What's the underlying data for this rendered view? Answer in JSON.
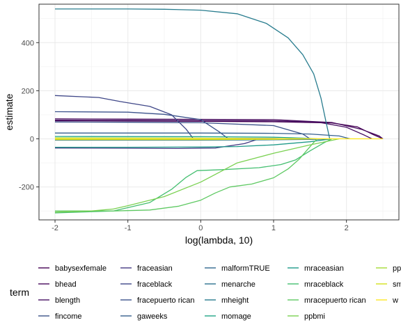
{
  "chart_data": {
    "type": "line",
    "xlabel": "log(lambda, 10)",
    "ylabel": "estimate",
    "xlim": [
      -2.22,
      2.72
    ],
    "ylim": [
      -337,
      560
    ],
    "x_ticks": [
      -2,
      -1,
      0,
      1,
      2
    ],
    "x_tick_labels": [
      "-2",
      "-1",
      "0",
      "1",
      "2"
    ],
    "y_ticks": [
      -200,
      0,
      200,
      400
    ],
    "y_tick_labels": [
      "-200",
      "0",
      "200",
      "400"
    ],
    "grid": true,
    "legend": {
      "title": "term",
      "placement": "bottom",
      "columns": [
        [
          "babysexfemale",
          "bhead",
          "blength",
          "fincome"
        ],
        [
          "fraceasian",
          "fraceblack",
          "fracepuerto rican",
          "gaweeks"
        ],
        [
          "malformTRUE",
          "menarche",
          "mheight",
          "momage"
        ],
        [
          "mraceasian",
          "mraceblack",
          "mracepuerto rican",
          "ppbmi"
        ],
        [
          "pp",
          "sm",
          "w"
        ]
      ]
    },
    "series": [
      {
        "name": "babysexfemale",
        "color": "#440154",
        "points": [
          [
            -2,
            75
          ],
          [
            -1,
            74
          ],
          [
            0,
            73
          ],
          [
            1,
            71
          ],
          [
            1.8,
            66
          ],
          [
            2.15,
            50
          ],
          [
            2.35,
            20
          ],
          [
            2.5,
            0
          ]
        ]
      },
      {
        "name": "bhead",
        "color": "#46085c",
        "points": [
          [
            -2,
            83
          ],
          [
            -1,
            82
          ],
          [
            0,
            81
          ],
          [
            1,
            80
          ],
          [
            1.8,
            68
          ],
          [
            2.2,
            40
          ],
          [
            2.45,
            12
          ],
          [
            2.5,
            0
          ]
        ]
      },
      {
        "name": "blength",
        "color": "#471063",
        "points": [
          [
            -2,
            78
          ],
          [
            -1,
            77
          ],
          [
            0,
            76
          ],
          [
            1,
            75
          ],
          [
            1.6,
            70
          ],
          [
            2.0,
            48
          ],
          [
            2.25,
            15
          ],
          [
            2.35,
            0
          ]
        ]
      },
      {
        "name": "fincome",
        "color": "#3b5289",
        "points": [
          [
            -2,
            70
          ],
          [
            -1,
            69
          ],
          [
            0,
            67
          ],
          [
            1,
            55
          ],
          [
            1.4,
            20
          ],
          [
            1.5,
            0
          ]
        ]
      },
      {
        "name": "fraceasian",
        "color": "#443983",
        "points": [
          [
            -2,
            -38
          ],
          [
            -1,
            -39
          ],
          [
            -0.3,
            -40
          ],
          [
            0.2,
            -38
          ],
          [
            0.6,
            -20
          ],
          [
            0.75,
            -5
          ],
          [
            0.8,
            0
          ]
        ]
      },
      {
        "name": "fraceblack",
        "color": "#3f4788",
        "points": [
          [
            -2,
            180
          ],
          [
            -1.4,
            172
          ],
          [
            -1.1,
            155
          ],
          [
            -0.7,
            135
          ],
          [
            -0.4,
            100
          ],
          [
            -0.2,
            40
          ],
          [
            -0.1,
            0
          ]
        ]
      },
      {
        "name": "fracepuerto rican",
        "color": "#3b528b",
        "points": [
          [
            -2,
            113
          ],
          [
            -1,
            111
          ],
          [
            -0.5,
            102
          ],
          [
            0,
            80
          ],
          [
            0.25,
            30
          ],
          [
            0.38,
            0
          ]
        ]
      },
      {
        "name": "gaweeks",
        "color": "#355f8d",
        "points": [
          [
            -2,
            24
          ],
          [
            -1,
            24
          ],
          [
            0,
            24
          ],
          [
            1,
            23
          ],
          [
            1.5,
            20
          ],
          [
            1.9,
            12
          ],
          [
            2.05,
            0
          ]
        ]
      },
      {
        "name": "malformTRUE",
        "color": "#31688e",
        "points": [
          [
            -2,
            3
          ],
          [
            0,
            3
          ],
          [
            1,
            2
          ],
          [
            1.3,
            0
          ]
        ]
      },
      {
        "name": "menarche",
        "color": "#2c728e",
        "points": [
          [
            -2,
            -5
          ],
          [
            0,
            -5
          ],
          [
            1,
            -4
          ],
          [
            1.6,
            -2
          ],
          [
            1.8,
            0
          ]
        ]
      },
      {
        "name": "mheight",
        "color": "#287c8e",
        "points": [
          [
            -2,
            540
          ],
          [
            -1,
            540
          ],
          [
            -0.5,
            539
          ],
          [
            0,
            535
          ],
          [
            0.5,
            520
          ],
          [
            0.9,
            480
          ],
          [
            1.2,
            420
          ],
          [
            1.4,
            350
          ],
          [
            1.55,
            270
          ],
          [
            1.65,
            170
          ],
          [
            1.72,
            70
          ],
          [
            1.77,
            0
          ]
        ]
      },
      {
        "name": "momage",
        "color": "#21a585",
        "points": [
          [
            -2,
            10
          ],
          [
            0,
            9
          ],
          [
            1,
            7
          ],
          [
            1.4,
            3
          ],
          [
            1.6,
            0
          ]
        ]
      },
      {
        "name": "mraceasian",
        "color": "#1f9a8a",
        "points": [
          [
            -2,
            -35
          ],
          [
            -1,
            -35
          ],
          [
            0,
            -34
          ],
          [
            0.5,
            -32
          ],
          [
            1,
            -25
          ],
          [
            1.5,
            -12
          ],
          [
            1.8,
            0
          ]
        ]
      },
      {
        "name": "mraceblack",
        "color": "#44bf70",
        "points": [
          [
            -2,
            -308
          ],
          [
            -1.2,
            -300
          ],
          [
            -0.7,
            -265
          ],
          [
            -0.4,
            -210
          ],
          [
            -0.2,
            -160
          ],
          [
            -0.05,
            -132
          ],
          [
            0.3,
            -128
          ],
          [
            0.8,
            -120
          ],
          [
            1.1,
            -107
          ],
          [
            1.3,
            -88
          ],
          [
            1.5,
            -50
          ],
          [
            1.7,
            -15
          ],
          [
            1.8,
            0
          ]
        ]
      },
      {
        "name": "mracepuerto rican",
        "color": "#5ec962",
        "points": [
          [
            -2,
            -300
          ],
          [
            -1.2,
            -300
          ],
          [
            -0.7,
            -296
          ],
          [
            -0.3,
            -280
          ],
          [
            0,
            -255
          ],
          [
            0.2,
            -225
          ],
          [
            0.4,
            -200
          ],
          [
            0.7,
            -188
          ],
          [
            1.0,
            -162
          ],
          [
            1.2,
            -125
          ],
          [
            1.35,
            -85
          ],
          [
            1.45,
            -50
          ],
          [
            1.55,
            -15
          ],
          [
            1.6,
            0
          ]
        ]
      },
      {
        "name": "ppbmi",
        "color": "#7ad151",
        "points": [
          [
            -2,
            -305
          ],
          [
            -1.5,
            -300
          ],
          [
            -1.2,
            -292
          ],
          [
            -1.0,
            -278
          ],
          [
            -0.5,
            -240
          ],
          [
            0,
            -180
          ],
          [
            0.5,
            -100
          ],
          [
            1,
            -60
          ],
          [
            1.5,
            -25
          ],
          [
            1.9,
            0
          ]
        ]
      },
      {
        "name": "pp",
        "color": "#a5db36",
        "points": [
          [
            -2,
            4
          ],
          [
            0,
            3
          ],
          [
            1,
            1
          ],
          [
            1.4,
            0
          ]
        ]
      },
      {
        "name": "sm",
        "color": "#d2e21b",
        "points": [
          [
            -2,
            -3
          ],
          [
            0,
            -3
          ],
          [
            1,
            -2
          ],
          [
            1.5,
            0
          ]
        ]
      },
      {
        "name": "w",
        "color": "#fde725",
        "points": [
          [
            -2,
            1
          ],
          [
            0,
            1
          ],
          [
            2.5,
            0
          ]
        ]
      }
    ]
  }
}
